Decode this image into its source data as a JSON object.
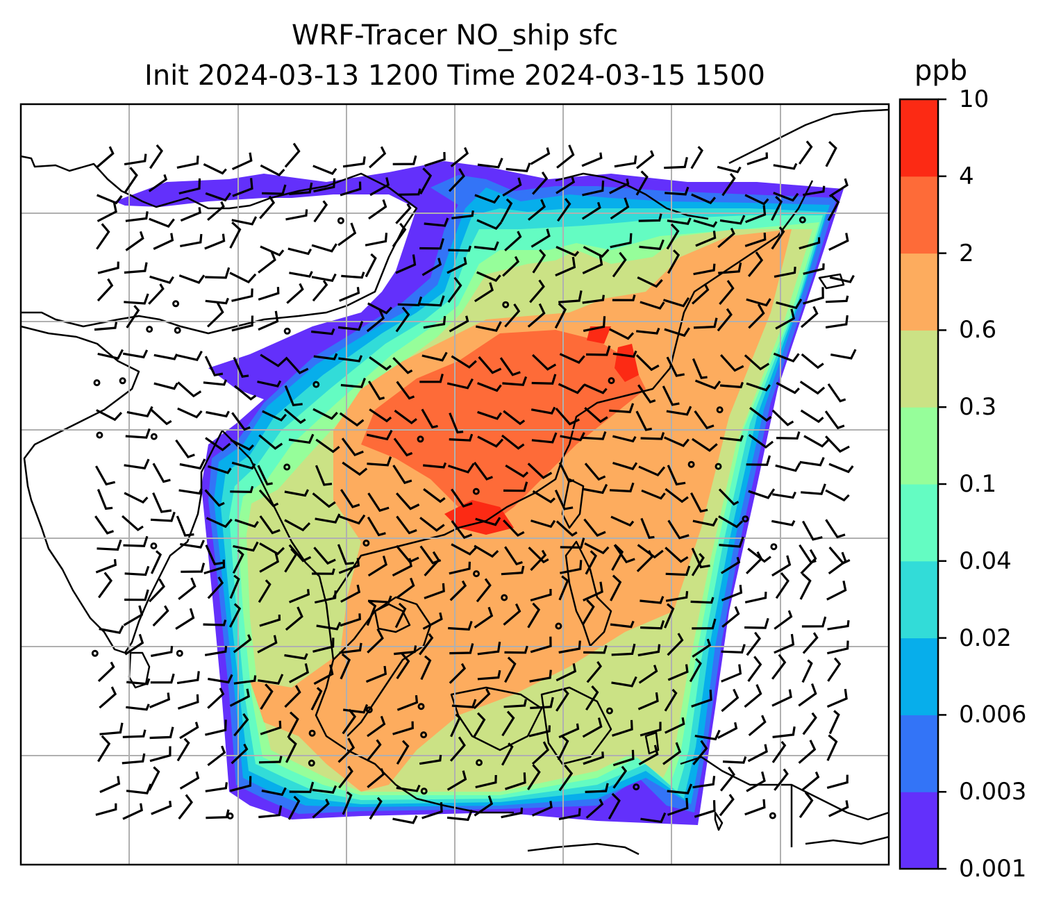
{
  "title": {
    "line1": "WRF-Tracer NO_ship sfc",
    "line2": "Init 2024-03-13 1200 Time 2024-03-15 1500"
  },
  "colorbar": {
    "unit": "ppb",
    "levels": [
      {
        "label": "0.001",
        "color": "#6330FB"
      },
      {
        "label": "0.003",
        "color": "#3374F7"
      },
      {
        "label": "0.006",
        "color": "#07AEEB"
      },
      {
        "label": "0.02",
        "color": "#32DCD8"
      },
      {
        "label": "0.04",
        "color": "#64FCC2"
      },
      {
        "label": "0.1",
        "color": "#96FE9A"
      },
      {
        "label": "0.3",
        "color": "#CBE285"
      },
      {
        "label": "0.6",
        "color": "#FDAC5E"
      },
      {
        "label": "2",
        "color": "#FE6B38"
      },
      {
        "label": "4",
        "color": "#FC2A14"
      },
      {
        "label": "10",
        "color": null
      }
    ]
  },
  "map": {
    "projection": "Mercator",
    "region": "South and East Asia, Maritime Continent",
    "overlays": [
      "coastlines",
      "gridlines",
      "wind-barbs"
    ],
    "grid": true,
    "land_color": "#FFFFFF",
    "coast_color": "#000000"
  }
}
